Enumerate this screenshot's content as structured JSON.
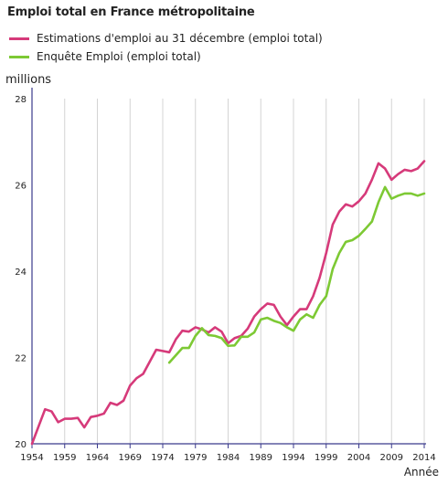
{
  "chart_data": {
    "type": "line",
    "title": "Emploi total en France métropolitaine",
    "ylabel": "millions",
    "xlabel": "Année",
    "xlim": [
      1954,
      2014
    ],
    "ylim": [
      20,
      28
    ],
    "x_ticks": [
      1954,
      1959,
      1964,
      1969,
      1974,
      1979,
      1984,
      1989,
      1994,
      1999,
      2004,
      2009,
      2014
    ],
    "y_ticks": [
      20,
      22,
      24,
      26,
      28
    ],
    "grid": "vertical",
    "legend": "top-left",
    "series": [
      {
        "name": "Estimations d'emploi au 31 décembre (emploi total)",
        "color": "#d63a7a",
        "x": [
          1954,
          1955,
          1956,
          1957,
          1958,
          1959,
          1960,
          1961,
          1962,
          1963,
          1964,
          1965,
          1966,
          1967,
          1968,
          1969,
          1970,
          1971,
          1972,
          1973,
          1974,
          1975,
          1976,
          1977,
          1978,
          1979,
          1980,
          1981,
          1982,
          1983,
          1984,
          1985,
          1986,
          1987,
          1988,
          1989,
          1990,
          1991,
          1992,
          1993,
          1994,
          1995,
          1996,
          1997,
          1998,
          1999,
          2000,
          2001,
          2002,
          2003,
          2004,
          2005,
          2006,
          2007,
          2008,
          2009,
          2010,
          2011,
          2012,
          2013,
          2014
        ],
        "values": [
          20.0,
          20.4,
          20.8,
          20.75,
          20.5,
          20.58,
          20.58,
          20.6,
          20.38,
          20.62,
          20.65,
          20.7,
          20.95,
          20.9,
          21.0,
          21.35,
          21.52,
          21.62,
          21.9,
          22.18,
          22.15,
          22.12,
          22.42,
          22.62,
          22.6,
          22.7,
          22.65,
          22.58,
          22.7,
          22.6,
          22.33,
          22.45,
          22.5,
          22.67,
          22.95,
          23.12,
          23.25,
          23.22,
          22.95,
          22.75,
          22.95,
          23.12,
          23.12,
          23.42,
          23.85,
          24.42,
          25.08,
          25.38,
          25.55,
          25.5,
          25.62,
          25.8,
          26.12,
          26.5,
          26.38,
          26.12,
          26.25,
          26.35,
          26.32,
          26.38,
          26.55
        ]
      },
      {
        "name": "Enquête Emploi (emploi total)",
        "color": "#7dc934",
        "x": [
          1975,
          1976,
          1977,
          1978,
          1979,
          1980,
          1981,
          1982,
          1983,
          1984,
          1985,
          1986,
          1987,
          1988,
          1989,
          1990,
          1991,
          1992,
          1993,
          1994,
          1995,
          1996,
          1997,
          1998,
          1999,
          2000,
          2001,
          2002,
          2003,
          2004,
          2005,
          2006,
          2007,
          2008,
          2009,
          2010,
          2011,
          2012,
          2013,
          2014
        ],
        "values": [
          21.88,
          22.05,
          22.22,
          22.22,
          22.5,
          22.68,
          22.52,
          22.5,
          22.45,
          22.27,
          22.28,
          22.48,
          22.48,
          22.58,
          22.88,
          22.92,
          22.85,
          22.8,
          22.7,
          22.62,
          22.88,
          23.0,
          22.92,
          23.22,
          23.42,
          24.05,
          24.42,
          24.68,
          24.72,
          24.82,
          24.98,
          25.15,
          25.6,
          25.95,
          25.68,
          25.75,
          25.8,
          25.8,
          25.75,
          25.8
        ]
      }
    ]
  }
}
